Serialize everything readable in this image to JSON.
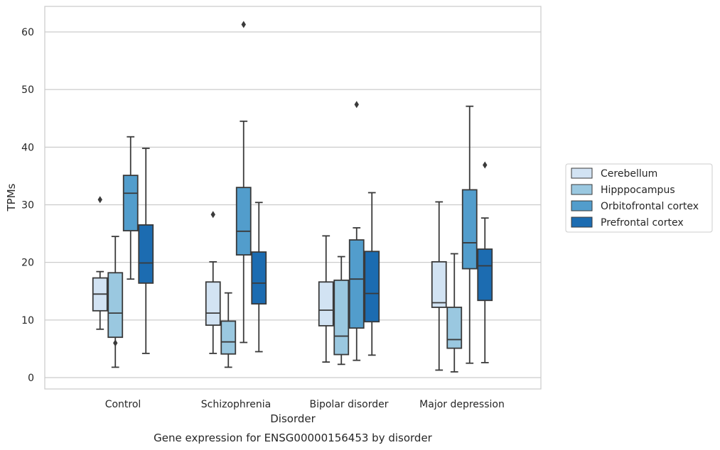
{
  "chart_data": {
    "type": "boxplot",
    "title": "",
    "caption": "Gene expression for ENSG00000156453 by disorder",
    "xlabel": "Disorder",
    "ylabel": "TPMs",
    "ylim": [
      -2,
      64.5
    ],
    "yticks": [
      0,
      10,
      20,
      30,
      40,
      50,
      60
    ],
    "ytick_labels": [
      "0",
      "10",
      "20",
      "30",
      "40",
      "50",
      "60"
    ],
    "grid": "horizontal",
    "legend_position": "right",
    "categories": [
      "Control",
      "Schizophrenia",
      "Bipolar disorder",
      "Major depression"
    ],
    "series": [
      {
        "name": "Cerebellum",
        "color": "#d2e3f3",
        "boxes": [
          {
            "whislo": 8.4,
            "q1": 11.6,
            "med": 14.5,
            "q3": 17.3,
            "whishi": 18.4,
            "fliers": [
              30.9
            ]
          },
          {
            "whislo": 4.2,
            "q1": 9.1,
            "med": 11.2,
            "q3": 16.6,
            "whishi": 20.1,
            "fliers": [
              28.3
            ]
          },
          {
            "whislo": 2.7,
            "q1": 9.0,
            "med": 11.7,
            "q3": 16.6,
            "whishi": 24.6,
            "fliers": []
          },
          {
            "whislo": 1.3,
            "q1": 12.2,
            "med": 13.0,
            "q3": 20.1,
            "whishi": 30.5,
            "fliers": []
          }
        ]
      },
      {
        "name": "Hipppocampus",
        "color": "#9ac8e0",
        "boxes": [
          {
            "whislo": 1.8,
            "q1": 7.0,
            "med": 11.2,
            "q3": 18.2,
            "whishi": 24.5,
            "fliers": [
              6.0
            ]
          },
          {
            "whislo": 1.8,
            "q1": 4.1,
            "med": 6.2,
            "q3": 9.8,
            "whishi": 14.7,
            "fliers": []
          },
          {
            "whislo": 2.3,
            "q1": 4.0,
            "med": 7.2,
            "q3": 16.9,
            "whishi": 21.0,
            "fliers": []
          },
          {
            "whislo": 1.0,
            "q1": 5.1,
            "med": 6.6,
            "q3": 12.2,
            "whishi": 21.5,
            "fliers": []
          }
        ]
      },
      {
        "name": "Orbitofrontal cortex",
        "color": "#529dcc",
        "boxes": [
          {
            "whislo": 17.1,
            "q1": 25.5,
            "med": 32.0,
            "q3": 35.1,
            "whishi": 41.8,
            "fliers": []
          },
          {
            "whislo": 6.1,
            "q1": 21.3,
            "med": 25.4,
            "q3": 33.0,
            "whishi": 44.5,
            "fliers": [
              61.3
            ]
          },
          {
            "whislo": 3.0,
            "q1": 8.6,
            "med": 17.1,
            "q3": 23.9,
            "whishi": 26.0,
            "fliers": [
              47.4
            ]
          },
          {
            "whislo": 2.5,
            "q1": 18.9,
            "med": 23.4,
            "q3": 32.6,
            "whishi": 47.1,
            "fliers": []
          }
        ]
      },
      {
        "name": "Prefrontal cortex",
        "color": "#1c6cb1",
        "boxes": [
          {
            "whislo": 4.2,
            "q1": 16.4,
            "med": 19.9,
            "q3": 26.5,
            "whishi": 39.8,
            "fliers": []
          },
          {
            "whislo": 4.5,
            "q1": 12.8,
            "med": 16.4,
            "q3": 21.8,
            "whishi": 30.4,
            "fliers": []
          },
          {
            "whislo": 3.9,
            "q1": 9.7,
            "med": 14.6,
            "q3": 21.9,
            "whishi": 32.1,
            "fliers": []
          },
          {
            "whislo": 2.6,
            "q1": 13.4,
            "med": 19.4,
            "q3": 22.3,
            "whishi": 27.7,
            "fliers": [
              36.9
            ]
          }
        ]
      }
    ]
  }
}
